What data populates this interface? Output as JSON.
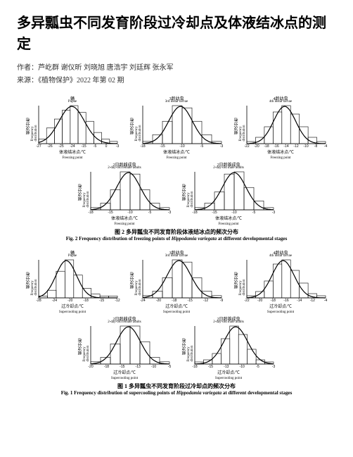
{
  "title": "多异瓢虫不同发育阶段过冷却点及体液结冰点的测定",
  "authors_line": "作者：芦屹群 谢仪昕 刘晓旭 唐浩宇 刘廷辉 张永军",
  "source_line": "来源：《植物保护》2022 年第 02 期",
  "figure2": {
    "caption_cn": "图 2  多异瓢虫不同发育阶段体液结冰点的频次分布",
    "caption_en_pre": "Fig. 2  Frequency distribution of freezing points of ",
    "caption_en_species": "Hippodamia variegata",
    "caption_en_post": " at different developmental stages",
    "common": {
      "ylabel_cn": "频次分布",
      "ylabel_en": "Frequency distribution",
      "xlabel_cn": "体液结冰点/℃",
      "xlabel_en": "Freezing point",
      "stroke": "#000000",
      "curve_width": 1.2,
      "bar_fill": "none",
      "bar_stroke": "#000000",
      "background": "#ffffff"
    },
    "panels": [
      {
        "title_cn": "蛹",
        "title_en": "Pupae",
        "xticks": [
          -27,
          -26,
          -25,
          -24,
          -15,
          -5,
          0,
          -3
        ],
        "xtick_labels": [
          "-27",
          "-26",
          "-25",
          "-24",
          "-15",
          "-5",
          "0",
          "-3"
        ],
        "bars": [
          2,
          7,
          11,
          15,
          17,
          14,
          10,
          5,
          2,
          1
        ],
        "curve_peak_x": 0.42,
        "curve_sigma": 0.16
      },
      {
        "title_cn": "3龄幼虫",
        "title_en": "3rd instar larvae",
        "xticks": [
          -18,
          -15,
          -10,
          -5,
          -3
        ],
        "xtick_labels": [
          "-18",
          "-15",
          "-10",
          "-5",
          "-3"
        ],
        "bars": [
          1,
          4,
          10,
          17,
          16,
          10,
          4,
          1
        ],
        "curve_peak_x": 0.48,
        "curve_sigma": 0.15
      },
      {
        "title_cn": "4龄幼虫",
        "title_en": "4th instar larvae",
        "xticks": [
          -22,
          -20,
          -18,
          -16,
          -14,
          -12,
          -10,
          -8,
          -4
        ],
        "xtick_labels": [
          "-22",
          "-20",
          "-18",
          "-16",
          "-14",
          "-12",
          "-10",
          "-8",
          "-4"
        ],
        "bars": [
          1,
          3,
          8,
          15,
          18,
          14,
          8,
          3,
          1
        ],
        "curve_peak_x": 0.48,
        "curve_sigma": 0.14
      },
      {
        "title_cn": "2日龄雌成虫",
        "title_en": "2-day-old female adults",
        "xticks": [
          -18,
          -15,
          -10,
          -5,
          -3
        ],
        "xtick_labels": [
          "-18",
          "-15",
          "-10",
          "-5",
          "-3"
        ],
        "bars": [
          1,
          3,
          9,
          17,
          16,
          9,
          3,
          1
        ],
        "curve_peak_x": 0.48,
        "curve_sigma": 0.15
      },
      {
        "title_cn": "2日龄雄成虫",
        "title_en": "2-day-old male adults",
        "xticks": [
          -18,
          -15,
          -10,
          -5,
          -3
        ],
        "xtick_labels": [
          "-18",
          "-15",
          "-10",
          "-5",
          "-3"
        ],
        "bars": [
          1,
          3,
          8,
          16,
          17,
          10,
          4,
          1
        ],
        "curve_peak_x": 0.5,
        "curve_sigma": 0.15
      }
    ]
  },
  "figure1": {
    "caption_cn": "图 1  多异瓢虫不同发育阶段过冷却点的频次分布",
    "caption_en_pre": "Fig. 1  Frequency distribution of supercooling points of ",
    "caption_en_species": "Hippodamia variegata",
    "caption_en_post": " at different developmental stages",
    "common": {
      "ylabel_cn": "频次分布",
      "ylabel_en": "Frequency distribution",
      "xlabel_cn": "过冷却点/℃",
      "xlabel_en": "Supercooling point",
      "stroke": "#000000",
      "curve_width": 1.2,
      "bar_fill": "none",
      "bar_stroke": "#000000",
      "background": "#ffffff"
    },
    "panels": [
      {
        "title_cn": "蛹",
        "title_en": "Pupae",
        "xticks": [
          -28,
          -24,
          -20,
          -18,
          -15,
          -12
        ],
        "xtick_labels": [
          "-28",
          "-24",
          "-20",
          "-18",
          "-15",
          "-12"
        ],
        "bars": [
          1,
          4,
          14,
          20,
          12,
          5,
          2,
          1,
          1
        ],
        "curve_peak_x": 0.35,
        "curve_sigma": 0.13
      },
      {
        "title_cn": "3龄幼虫",
        "title_en": "3rd instar larvae",
        "xticks": [
          -24,
          -20,
          -18,
          -15,
          -12,
          -9
        ],
        "xtick_labels": [
          "-24",
          "-20",
          "-18",
          "-15",
          "-12",
          "-9"
        ],
        "bars": [
          1,
          3,
          9,
          17,
          16,
          9,
          3,
          1
        ],
        "curve_peak_x": 0.46,
        "curve_sigma": 0.15
      },
      {
        "title_cn": "4龄幼虫",
        "title_en": "4th instar larvae",
        "xticks": [
          -22,
          -20,
          -18,
          -16,
          -14,
          -12,
          -4
        ],
        "xtick_labels": [
          "-22",
          "-20",
          "-18",
          "-16",
          "-14",
          "-12",
          "-4"
        ],
        "bars": [
          1,
          3,
          8,
          16,
          18,
          13,
          7,
          2,
          1
        ],
        "curve_peak_x": 0.46,
        "curve_sigma": 0.14
      },
      {
        "title_cn": "2日龄雌成虫",
        "title_en": "2-day-old female adults",
        "xticks": [
          -20,
          -18,
          -15,
          -13,
          -10,
          -5
        ],
        "xtick_labels": [
          "-20",
          "-18",
          "-15",
          "-13",
          "-10",
          "-5"
        ],
        "bars": [
          1,
          3,
          9,
          17,
          17,
          10,
          3,
          1
        ],
        "curve_peak_x": 0.48,
        "curve_sigma": 0.15
      },
      {
        "title_cn": "2日龄雄成虫",
        "title_en": "2-day-old male adults",
        "xticks": [
          -18,
          -15,
          -13,
          -10,
          -5,
          -3
        ],
        "xtick_labels": [
          "-18",
          "-15",
          "-13",
          "-10",
          "-5",
          "-3"
        ],
        "bars": [
          1,
          2,
          5,
          12,
          18,
          14,
          7,
          2,
          1
        ],
        "curve_peak_x": 0.52,
        "curve_sigma": 0.15
      }
    ]
  }
}
